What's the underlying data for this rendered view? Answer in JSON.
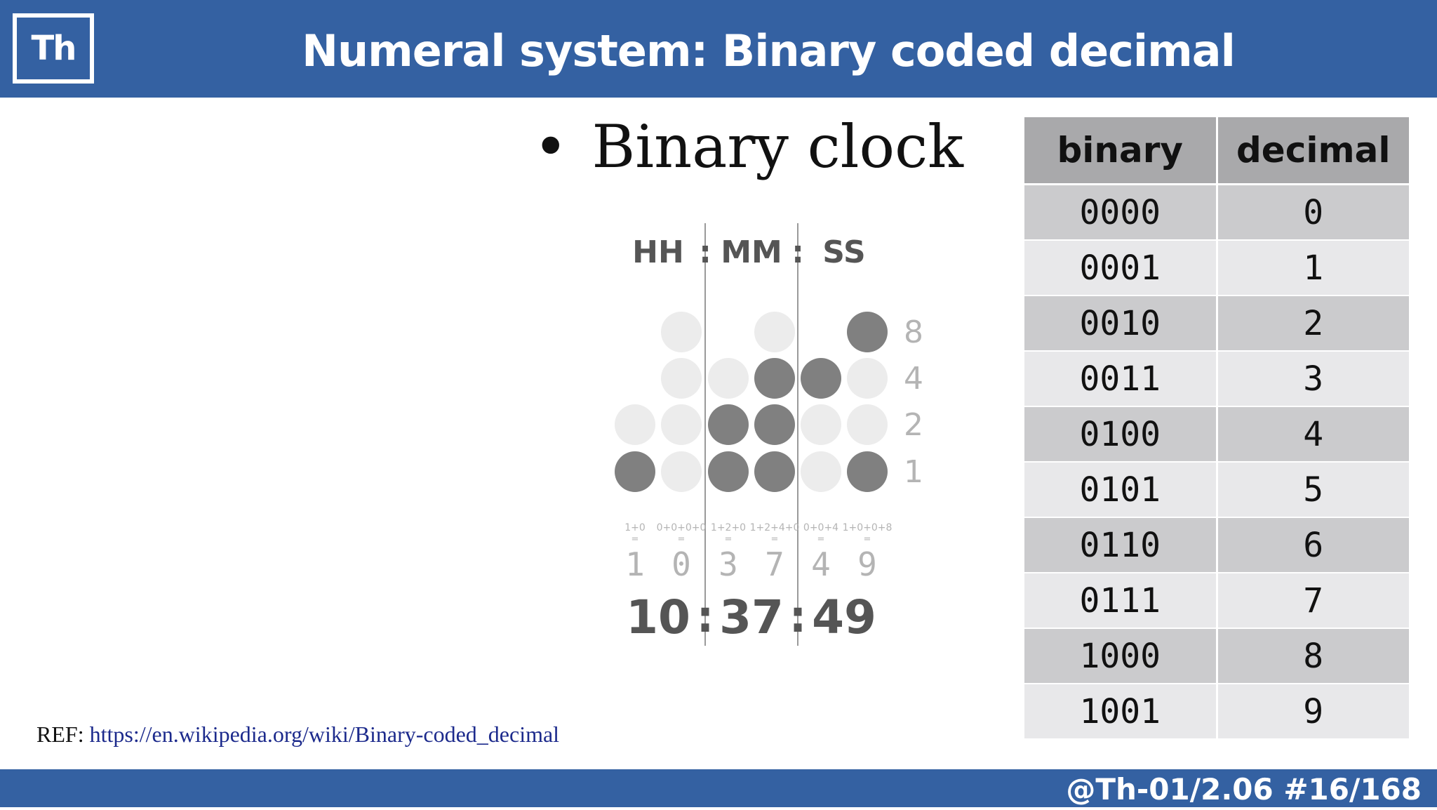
{
  "header": {
    "logo_text": "Th",
    "title": "Numeral system: Binary coded decimal"
  },
  "bullet": {
    "symbol": "•",
    "text": "Binary clock"
  },
  "clock": {
    "unit_labels": [
      "HH",
      "MM",
      "SS"
    ],
    "separator": ":",
    "weights": [
      "8",
      "4",
      "2",
      "1"
    ],
    "columns": [
      {
        "bits": [
          null,
          null,
          0,
          1
        ],
        "sum": "1+0",
        "digit": "1"
      },
      {
        "bits": [
          0,
          0,
          0,
          0
        ],
        "sum": "0+0+0+0",
        "digit": "0"
      },
      {
        "bits": [
          null,
          0,
          1,
          1
        ],
        "sum": "1+2+0",
        "digit": "3"
      },
      {
        "bits": [
          0,
          1,
          1,
          1
        ],
        "sum": "1+2+4+0",
        "digit": "7"
      },
      {
        "bits": [
          null,
          1,
          0,
          0
        ],
        "sum": "0+0+4",
        "digit": "4"
      },
      {
        "bits": [
          1,
          0,
          0,
          1
        ],
        "sum": "1+0+0+8",
        "digit": "9"
      }
    ],
    "equals": "=",
    "time": [
      "10",
      "37",
      "49"
    ],
    "colors": {
      "on": "#808080",
      "off": "#ececec",
      "text_dark": "#555555",
      "text_light": "#b4b4b4",
      "divider": "#9a9a9a"
    }
  },
  "table": {
    "headers": [
      "binary",
      "decimal"
    ],
    "rows": [
      [
        "0000",
        "0"
      ],
      [
        "0001",
        "1"
      ],
      [
        "0010",
        "2"
      ],
      [
        "0011",
        "3"
      ],
      [
        "0100",
        "4"
      ],
      [
        "0101",
        "5"
      ],
      [
        "0110",
        "6"
      ],
      [
        "0111",
        "7"
      ],
      [
        "1000",
        "8"
      ],
      [
        "1001",
        "9"
      ]
    ]
  },
  "reference": {
    "label": "REF: ",
    "link": "https://en.wikipedia.org/wiki/Binary-coded_decimal"
  },
  "footer": {
    "text": "@Th-01/2.06 #16/168"
  }
}
